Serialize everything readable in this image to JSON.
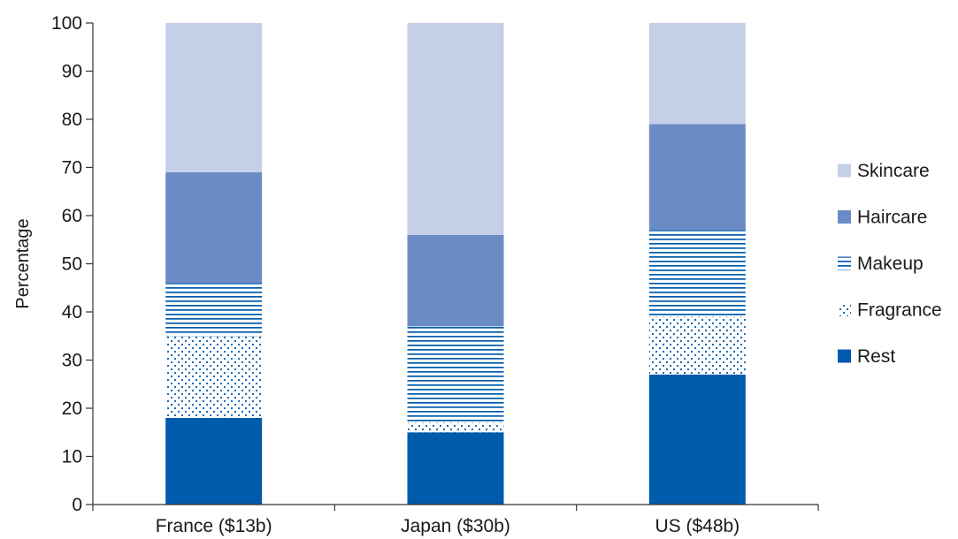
{
  "chart_data": {
    "type": "bar",
    "stacked": true,
    "categories": [
      "France ($13b)",
      "Japan ($30b)",
      "US ($48b)"
    ],
    "series": [
      {
        "name": "Rest",
        "values": [
          18,
          15,
          27
        ],
        "color": "#005BAC",
        "pattern": "solid"
      },
      {
        "name": "Fragrance",
        "values": [
          17,
          2,
          12
        ],
        "color": "#005BAC",
        "pattern": "dots"
      },
      {
        "name": "Makeup",
        "values": [
          11,
          20,
          18
        ],
        "color": "#005BAC",
        "pattern": "hlines"
      },
      {
        "name": "Haircare",
        "values": [
          23,
          19,
          22
        ],
        "color": "#6A8BC5",
        "pattern": "solid"
      },
      {
        "name": "Skincare",
        "values": [
          31,
          44,
          21
        ],
        "color": "#C5CFE8",
        "pattern": "solid"
      }
    ],
    "ylabel": "Percentage",
    "xlabel": "",
    "ylim": [
      0,
      100
    ],
    "yticks": [
      0,
      10,
      20,
      30,
      40,
      50,
      60,
      70,
      80,
      90,
      100
    ],
    "legend_order": [
      "Skincare",
      "Haircare",
      "Makeup",
      "Fragrance",
      "Rest"
    ],
    "legend_position": "right",
    "grid": false
  }
}
